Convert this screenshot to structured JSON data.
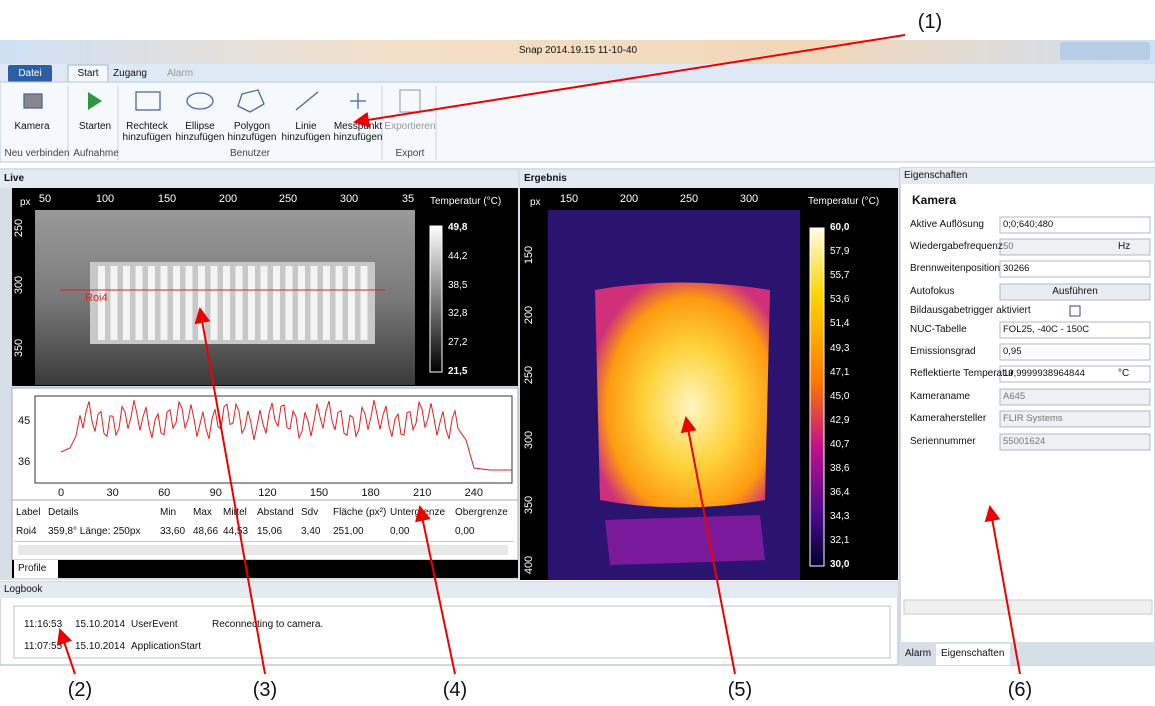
{
  "window": {
    "title": "Snap 2014.19.15 11-10-40"
  },
  "ribbon": {
    "tabs": [
      "Datei",
      "Start",
      "Zugang",
      "Alarm"
    ],
    "buttons": [
      "Kamera",
      "Starten",
      "Rechteck hinzufügen",
      "Ellipse hinzufügen",
      "Polygon hinzufügen",
      "Linie hinzufügen",
      "Messpunkt hinzufügen",
      "Exportieren"
    ],
    "groups": [
      "Neu verbinden",
      "Aufnahme",
      "Benutzer",
      "Export"
    ]
  },
  "live": {
    "title": "Live",
    "axis_unit": "px",
    "x_ticks": [
      "50",
      "100",
      "150",
      "200",
      "250",
      "300",
      "35"
    ],
    "y_ticks": [
      "250",
      "300",
      "350"
    ],
    "scale_title": "Temperatur (°C)",
    "scale": [
      "49,8",
      "44,2",
      "38,5",
      "32,8",
      "27,2",
      "21,5"
    ],
    "roi": "Roi4"
  },
  "profile": {
    "y_ticks": [
      "45",
      "36"
    ],
    "x_ticks": [
      "0",
      "30",
      "60",
      "90",
      "120",
      "150",
      "180",
      "210",
      "240"
    ],
    "table": {
      "header": [
        "Label",
        "Details",
        "Min",
        "Max",
        "Mittel",
        "Abstand",
        "Sdv",
        "Fläche (px²)",
        "Untergrenze",
        "Obergrenze"
      ],
      "rows": [
        [
          "Roi4",
          "359,8° Länge: 250px",
          "33,60",
          "48,66",
          "44,53",
          "15,06",
          "3,40",
          "251,00",
          "0,00",
          "0,00"
        ]
      ]
    },
    "tab": "Profile"
  },
  "result": {
    "title": "Ergebnis",
    "axis_unit": "px",
    "x_ticks": [
      "150",
      "200",
      "250",
      "300"
    ],
    "y_ticks": [
      "150",
      "200",
      "250",
      "300",
      "350",
      "400"
    ],
    "scale_title": "Temperatur (°C)",
    "scale": [
      "60,0",
      "57,9",
      "55,7",
      "53,6",
      "51,4",
      "49,3",
      "47,1",
      "45,0",
      "42,9",
      "40,7",
      "38,6",
      "36,4",
      "34,3",
      "32,1",
      "30,0"
    ]
  },
  "properties": {
    "title": "Eigenschaften",
    "section": "Kamera",
    "rows": [
      {
        "label": "Aktive Auflösung",
        "value": "0;0;640;480"
      },
      {
        "label": "Wiedergabefrequenz",
        "value": "50",
        "unit": "Hz"
      },
      {
        "label": "Brennweitenposition",
        "value": "30266"
      },
      {
        "label": "Autofokus",
        "value": "Ausführen"
      },
      {
        "label": "Bildausgabetrigger aktiviert"
      },
      {
        "label": "NUC-Tabelle",
        "value": "FOL25, -40C - 150C"
      },
      {
        "label": "Emissionsgrad",
        "value": "0,95"
      },
      {
        "label": "Reflektierte Temperatur",
        "value": "19,9999938964844",
        "unit": "°C"
      },
      {
        "label": "Kameraname",
        "value": "A645"
      },
      {
        "label": "Kamerahersteller",
        "value": "FLIR Systems"
      },
      {
        "label": "Seriennummer",
        "value": "55001624"
      }
    ]
  },
  "logbook": {
    "title": "Logbook",
    "entries": [
      [
        "11:16:53",
        "15.10.2014",
        "UserEvent",
        "Reconnecting to camera."
      ],
      [
        "11:07:55",
        "15.10.2014",
        "ApplicationStart"
      ]
    ]
  },
  "bottom_tabs": [
    "Alarm",
    "Eigenschaften"
  ],
  "annotations": [
    "(1)",
    "(2)",
    "(3)",
    "(4)",
    "(5)",
    "(6)"
  ]
}
